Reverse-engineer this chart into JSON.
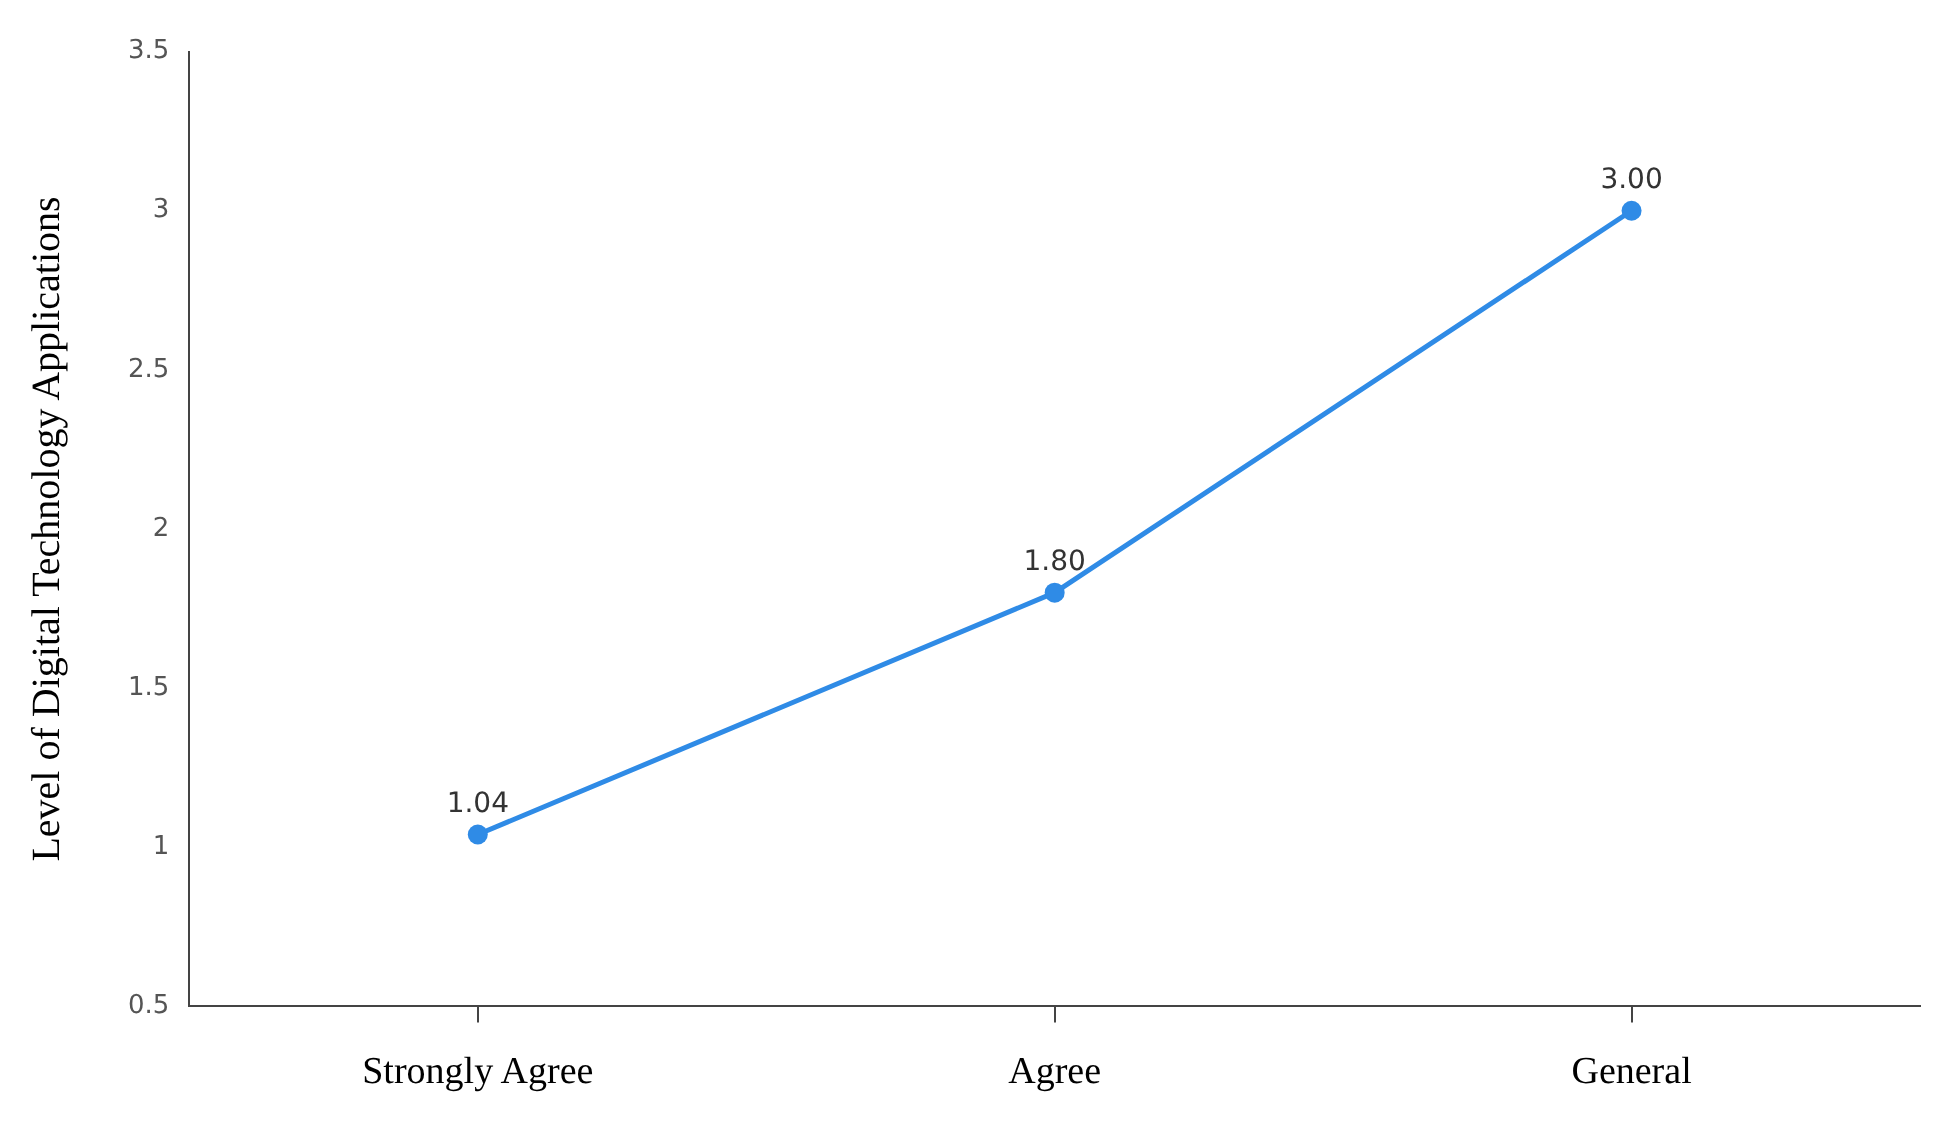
{
  "chart_data": {
    "type": "line",
    "ylabel": "Level of Digital Technology Applications",
    "categories": [
      "Strongly Agree",
      "Agree",
      "General"
    ],
    "series": [
      {
        "color": "#2f8be6",
        "values": [
          1.04,
          1.8,
          3
        ],
        "value_labels": [
          "1.04",
          "1.80",
          "3.00"
        ]
      }
    ],
    "ylim": [
      0.5,
      3.5
    ],
    "yticks": [
      0.5,
      1,
      1.5,
      2,
      2.5,
      3,
      3.5
    ],
    "grid": false,
    "legend": false,
    "marker": "circle",
    "line_style": "solid"
  }
}
